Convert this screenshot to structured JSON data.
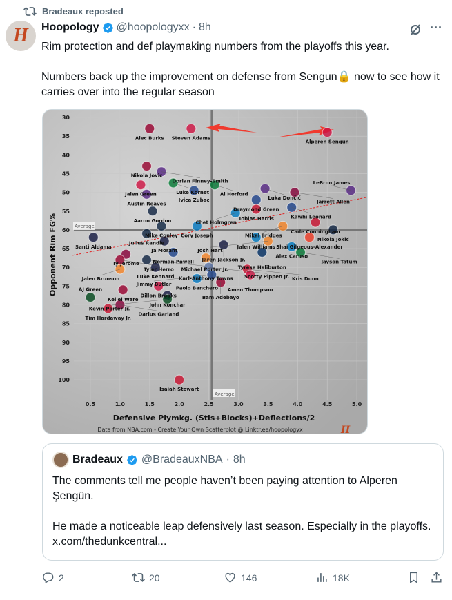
{
  "repost": {
    "label": "Bradeaux reposted"
  },
  "tweet": {
    "name": "Hoopology",
    "handle": "@hoopologyxx",
    "sep": "·",
    "time": "8h",
    "avatar_letter": "H",
    "text": "Rim protection and def playmaking numbers from the playoffs this year.\n\nNumbers back up the improvement on defense from Sengun🔒 now to see how it carries over into the regular season"
  },
  "chart_data": {
    "type": "scatter",
    "xlabel": "Defensive Plymkg. (Stls+Blocks)+Deflections/2",
    "ylabel": "Opponent Rim FG%",
    "source": "Data from NBA.com - Create Your Own Scatterplot @ Linktr.ee/hoopologyx",
    "xlim": [
      0.3,
      5.1
    ],
    "ylim": [
      104,
      29
    ],
    "y_inverted": true,
    "xticks": [
      "0.5",
      "1.0",
      "1.5",
      "2.0",
      "2.5",
      "3.0",
      "3.5",
      "4.0",
      "4.5",
      "5.0"
    ],
    "yticks": [
      "30",
      "35",
      "40",
      "45",
      "50",
      "55",
      "60",
      "65",
      "70",
      "75",
      "80",
      "85",
      "90",
      "95",
      "100"
    ],
    "average_label": "Average",
    "x_average": 2.55,
    "y_average": 60,
    "trendline": [
      [
        0.2,
        66.8
      ],
      [
        5.0,
        51.5
      ]
    ],
    "trend_color": "#e02020",
    "points": [
      {
        "name": "Alec Burks",
        "x": 1.5,
        "y": 33,
        "c": "#98002e"
      },
      {
        "name": "Steven Adams",
        "x": 2.2,
        "y": 33,
        "c": "#ce1141"
      },
      {
        "name": "Alperen Sengun",
        "x": 4.5,
        "y": 34,
        "c": "#ce1141"
      },
      {
        "name": "Nikola Jovic",
        "x": 1.45,
        "y": 43,
        "c": "#98002e"
      },
      {
        "name": "Dorian Finney-Smith",
        "x": 1.7,
        "y": 44.5,
        "c": "#552583"
      },
      {
        "name": "Jalen Green",
        "x": 1.35,
        "y": 48,
        "c": "#ce1141"
      },
      {
        "name": "Luke Kornet",
        "x": 1.9,
        "y": 47.5,
        "c": "#007a33"
      },
      {
        "name": "Austin Reaves",
        "x": 1.45,
        "y": 50.5,
        "c": "#552583"
      },
      {
        "name": "Ivica Zubac",
        "x": 2.25,
        "y": 49.5,
        "c": "#1d428a"
      },
      {
        "name": "Al Horford",
        "x": 2.6,
        "y": 48,
        "c": "#007a33"
      },
      {
        "name": "Luka Dončić",
        "x": 3.45,
        "y": 49,
        "c": "#552583"
      },
      {
        "name": "Jarrett Allen",
        "x": 3.95,
        "y": 50,
        "c": "#860038"
      },
      {
        "name": "LeBron James",
        "x": 4.9,
        "y": 49.5,
        "c": "#552583"
      },
      {
        "name": "Draymond Green",
        "x": 3.3,
        "y": 52,
        "c": "#1d428a"
      },
      {
        "name": "Tobias Harris",
        "x": 3.3,
        "y": 54.5,
        "c": "#c8102e"
      },
      {
        "name": "Kawhi Leonard",
        "x": 3.9,
        "y": 54,
        "c": "#1d428a"
      },
      {
        "name": "Chet Holmgren",
        "x": 2.95,
        "y": 55.5,
        "c": "#007ac1"
      },
      {
        "name": "Aaron Gordon",
        "x": 1.55,
        "y": 55,
        "c": "#0e2240"
      },
      {
        "name": "Cade Cunningham",
        "x": 4.3,
        "y": 58,
        "c": "#c8102e"
      },
      {
        "name": "Mikal Bridges",
        "x": 3.75,
        "y": 59,
        "c": "#f58426"
      },
      {
        "name": "Nikola Jokić",
        "x": 4.6,
        "y": 60,
        "c": "#0e2240"
      },
      {
        "name": "Shai Gilgeous-Alexander",
        "x": 4.2,
        "y": 62,
        "c": "#ef3b24"
      },
      {
        "name": "Alex Caruso",
        "x": 3.9,
        "y": 64.5,
        "c": "#007ac1"
      },
      {
        "name": "Jayson Tatum",
        "x": 4.05,
        "y": 66,
        "c": "#007a33"
      },
      {
        "name": "Santi Aldama",
        "x": 0.55,
        "y": 62,
        "c": "#12173f"
      },
      {
        "name": "Mike Conley",
        "x": 1.7,
        "y": 59,
        "c": "#0c2340"
      },
      {
        "name": "Julius Randle",
        "x": 1.45,
        "y": 61,
        "c": "#0c2340"
      },
      {
        "name": "Cory Joseph",
        "x": 2.3,
        "y": 59,
        "c": "#0077c0"
      },
      {
        "name": "Ja Morant",
        "x": 1.75,
        "y": 63,
        "c": "#12173f"
      },
      {
        "name": "Jalen Williams",
        "x": 3.3,
        "y": 62,
        "c": "#007ac1"
      },
      {
        "name": "Josh Hart",
        "x": 3.5,
        "y": 63,
        "c": "#f58426"
      },
      {
        "name": "Jaren Jackson Jr.",
        "x": 2.75,
        "y": 64,
        "c": "#12173f"
      },
      {
        "name": "Norman Powell",
        "x": 1.9,
        "y": 66,
        "c": "#1d428a"
      },
      {
        "name": "Tyrese Haliburton",
        "x": 3.4,
        "y": 66,
        "c": "#002d62"
      },
      {
        "name": "Ty Jerome",
        "x": 1.1,
        "y": 66.5,
        "c": "#860038"
      },
      {
        "name": "Tyler Herro",
        "x": 1.0,
        "y": 68,
        "c": "#98002e"
      },
      {
        "name": "Michael Porter Jr.",
        "x": 1.45,
        "y": 68,
        "c": "#0e2240"
      },
      {
        "name": "Karl-Anthony Towns",
        "x": 2.45,
        "y": 67.5,
        "c": "#f58426"
      },
      {
        "name": "Luke Kennard",
        "x": 1.6,
        "y": 70,
        "c": "#12173f"
      },
      {
        "name": "Scotty Pippen Jr.",
        "x": 2.5,
        "y": 70,
        "c": "#5d76a9"
      },
      {
        "name": "Kris Dunn",
        "x": 3.15,
        "y": 70.5,
        "c": "#c8102e"
      },
      {
        "name": "Jimmy Butler",
        "x": 2.55,
        "y": 72,
        "c": "#1d428a"
      },
      {
        "name": "Amen Thompson",
        "x": 3.2,
        "y": 72,
        "c": "#ce1141"
      },
      {
        "name": "Paolo Banchero",
        "x": 2.3,
        "y": 73,
        "c": "#0077c0"
      },
      {
        "name": "Bam Adebayo",
        "x": 2.7,
        "y": 74,
        "c": "#98002e"
      },
      {
        "name": "Jalen Brunson",
        "x": 1.0,
        "y": 70.5,
        "c": "#f58426"
      },
      {
        "name": "Dillon Brooks",
        "x": 1.65,
        "y": 75,
        "c": "#ce1141"
      },
      {
        "name": "John Konchar",
        "x": 1.8,
        "y": 77.5,
        "c": "#12173f"
      },
      {
        "name": "Kevin Porter Jr.",
        "x": 1.8,
        "y": 78.5,
        "c": "#00471b"
      },
      {
        "name": "Kel'el Ware",
        "x": 1.05,
        "y": 76,
        "c": "#98002e"
      },
      {
        "name": "AJ Green",
        "x": 0.5,
        "y": 78,
        "c": "#00471b"
      },
      {
        "name": "Darius Garland",
        "x": 1.0,
        "y": 80,
        "c": "#860038"
      },
      {
        "name": "Tim Hardaway Jr.",
        "x": 0.8,
        "y": 81,
        "c": "#c8102e"
      },
      {
        "name": "Isaiah Stewart",
        "x": 2.0,
        "y": 100,
        "c": "#c8102e"
      }
    ]
  },
  "quote": {
    "name": "Bradeaux",
    "handle": "@BradeauxNBA",
    "sep": "·",
    "time": "8h",
    "text": "The comments tell me people haven’t been paying attention to Alperen Şengün.\n\nHe made a noticeable leap defensively last season. Especially in the playoffs. x.com/thedunkcentral..."
  },
  "actions": {
    "replies": "2",
    "reposts": "20",
    "likes": "146",
    "views": "18K"
  },
  "colors": {
    "verified": "#1d9bf0",
    "muted": "#536471",
    "repost_arrow": "#ff3b30"
  }
}
